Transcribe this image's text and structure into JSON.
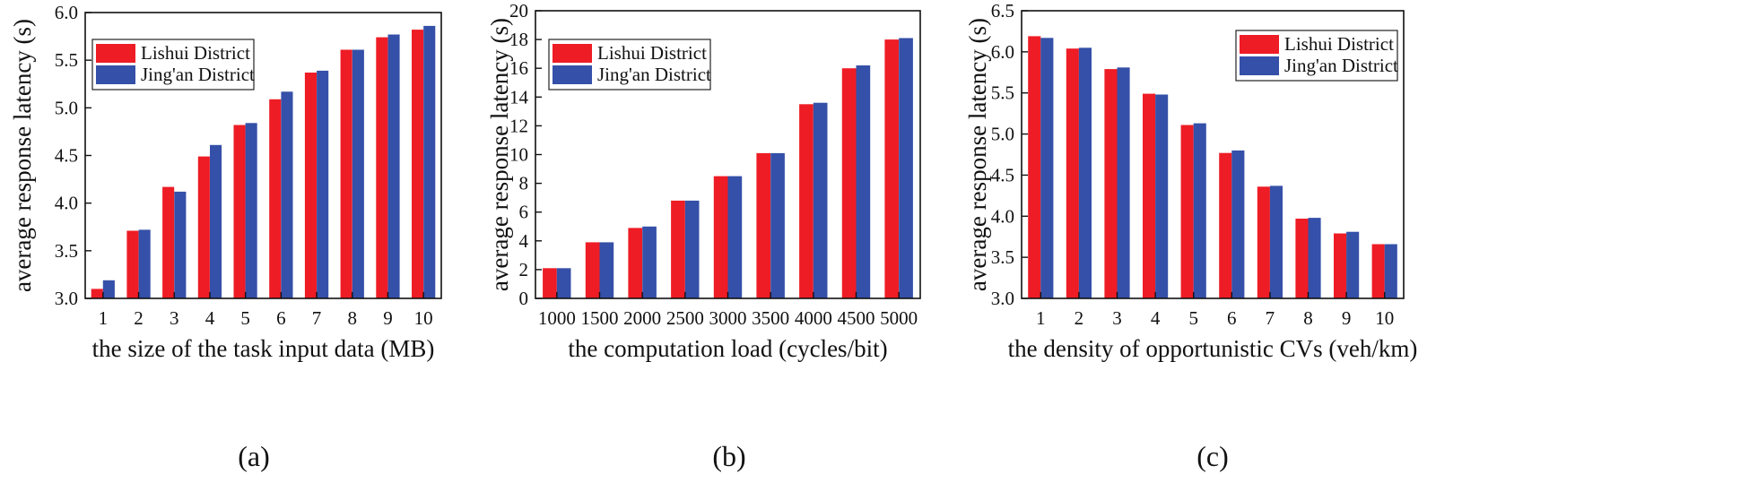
{
  "colors": {
    "lishui": "#ee1c25",
    "jingan": "#3550a8"
  },
  "chart_data": [
    {
      "type": "bar",
      "caption": "(a)",
      "xlabel": "the size of the task input data (MB)",
      "ylabel": "average response latency (s)",
      "categories": [
        "1",
        "2",
        "3",
        "4",
        "5",
        "6",
        "7",
        "8",
        "9",
        "10"
      ],
      "ylim": [
        3.0,
        6.0
      ],
      "yticks": [
        "3.0",
        "3.5",
        "4.0",
        "4.5",
        "5.0",
        "5.5",
        "6.0"
      ],
      "legend_position": "top-left",
      "series": [
        {
          "name": "Lishui District",
          "values": [
            3.1,
            3.71,
            4.17,
            4.49,
            4.82,
            5.09,
            5.37,
            5.61,
            5.74,
            5.82
          ]
        },
        {
          "name": "Jing'an District",
          "values": [
            3.19,
            3.72,
            4.12,
            4.61,
            4.84,
            5.17,
            5.39,
            5.61,
            5.77,
            5.86
          ]
        }
      ]
    },
    {
      "type": "bar",
      "caption": "(b)",
      "xlabel": "the computation load (cycles/bit)",
      "ylabel": "average response latency (s)",
      "categories": [
        "1000",
        "1500",
        "2000",
        "2500",
        "3000",
        "3500",
        "4000",
        "4500",
        "5000"
      ],
      "ylim": [
        0,
        20
      ],
      "yticks": [
        "0",
        "2",
        "4",
        "6",
        "8",
        "10",
        "12",
        "14",
        "16",
        "18",
        "20"
      ],
      "legend_position": "top-left",
      "series": [
        {
          "name": "Lishui District",
          "values": [
            2.1,
            3.9,
            4.9,
            6.8,
            8.5,
            10.1,
            13.5,
            16.0,
            18.0
          ]
        },
        {
          "name": "Jing'an District",
          "values": [
            2.1,
            3.9,
            5.0,
            6.8,
            8.5,
            10.1,
            13.6,
            16.2,
            18.1
          ]
        }
      ]
    },
    {
      "type": "bar",
      "caption": "(c)",
      "xlabel": "the density of opportunistic CVs (veh/km)",
      "ylabel": "average response latency (s)",
      "categories": [
        "1",
        "2",
        "3",
        "4",
        "5",
        "6",
        "7",
        "8",
        "9",
        "10"
      ],
      "ylim": [
        3.0,
        6.5
      ],
      "yticks": [
        "3.0",
        "3.5",
        "4.0",
        "4.5",
        "5.0",
        "5.5",
        "6.0",
        "6.5"
      ],
      "legend_position": "top-right",
      "series": [
        {
          "name": "Lishui District",
          "values": [
            6.19,
            6.04,
            5.79,
            5.49,
            5.11,
            4.77,
            4.36,
            3.97,
            3.79,
            3.66
          ]
        },
        {
          "name": "Jing'an District",
          "values": [
            6.17,
            6.05,
            5.81,
            5.48,
            5.13,
            4.8,
            4.37,
            3.98,
            3.81,
            3.66
          ]
        }
      ]
    }
  ]
}
